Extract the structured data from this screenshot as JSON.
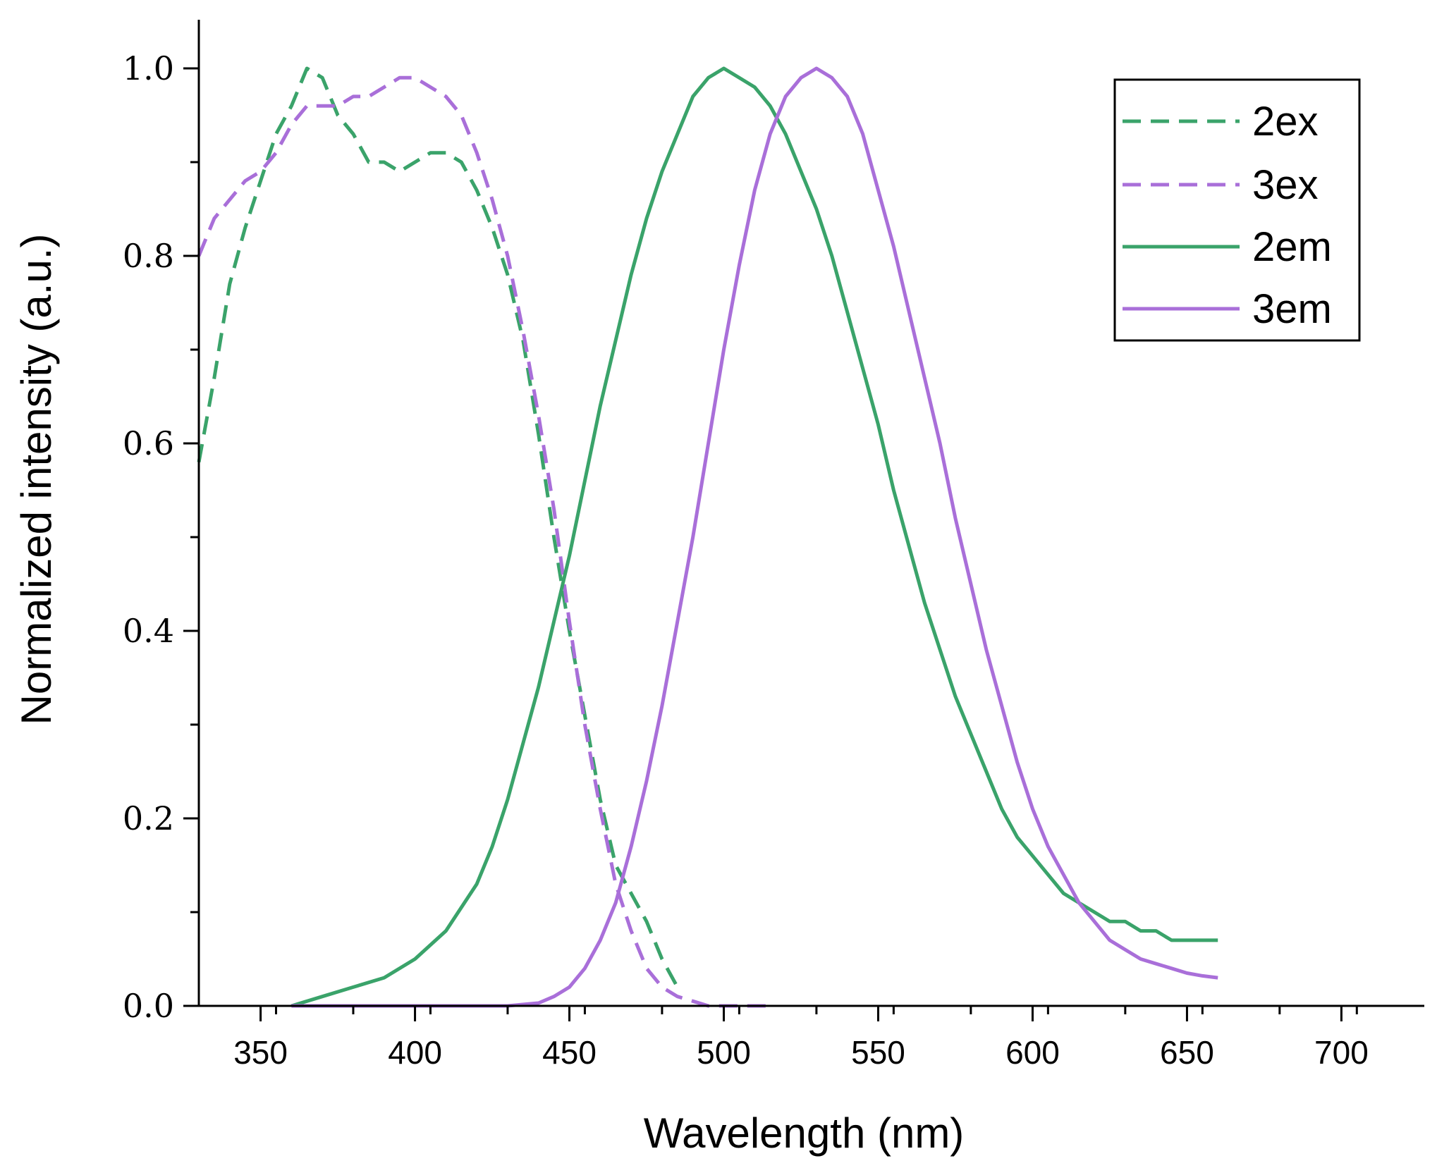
{
  "chart_data": {
    "type": "line",
    "title": "",
    "xlabel": "Wavelength (nm)",
    "ylabel": "Normalized intensity (a.u.)",
    "xlim": [
      330,
      720
    ],
    "ylim": [
      0,
      1.05
    ],
    "x_major_ticks": [
      350,
      400,
      450,
      500,
      550,
      600,
      650,
      700
    ],
    "x_tick_labels": [
      "350",
      "400",
      "450",
      "500",
      "550",
      "600",
      "650",
      "700"
    ],
    "y_major_ticks": [
      0.0,
      0.2,
      0.4,
      0.6,
      0.8,
      1.0
    ],
    "y_tick_labels": [
      "0.0",
      "0.2",
      "0.4",
      "0.6",
      "0.8",
      "1.0"
    ],
    "grid": false,
    "legend_position": "top-right",
    "series": [
      {
        "name": "2ex",
        "label": "2ex",
        "color": "#3aa36a",
        "dash": "dashed",
        "x": [
          330,
          335,
          340,
          345,
          350,
          355,
          360,
          365,
          370,
          375,
          380,
          385,
          390,
          395,
          400,
          405,
          410,
          415,
          420,
          425,
          430,
          435,
          440,
          445,
          450,
          455,
          460,
          465,
          470,
          475,
          480,
          485
        ],
        "y": [
          0.58,
          0.67,
          0.77,
          0.83,
          0.88,
          0.93,
          0.96,
          1.0,
          0.99,
          0.95,
          0.93,
          0.9,
          0.9,
          0.89,
          0.9,
          0.91,
          0.91,
          0.9,
          0.87,
          0.83,
          0.78,
          0.71,
          0.61,
          0.5,
          0.4,
          0.31,
          0.22,
          0.15,
          0.12,
          0.09,
          0.05,
          0.02
        ]
      },
      {
        "name": "3ex",
        "label": "3ex",
        "color": "#a96fd9",
        "dash": "dashed",
        "x": [
          330,
          335,
          340,
          345,
          350,
          355,
          360,
          365,
          370,
          375,
          380,
          385,
          390,
          395,
          400,
          405,
          410,
          415,
          420,
          425,
          430,
          435,
          440,
          445,
          450,
          455,
          460,
          465,
          470,
          475,
          480,
          485,
          490,
          495,
          500,
          505,
          510,
          515
        ],
        "y": [
          0.8,
          0.84,
          0.86,
          0.88,
          0.89,
          0.91,
          0.94,
          0.96,
          0.96,
          0.96,
          0.97,
          0.97,
          0.98,
          0.99,
          0.99,
          0.98,
          0.97,
          0.95,
          0.91,
          0.86,
          0.8,
          0.72,
          0.63,
          0.53,
          0.41,
          0.3,
          0.21,
          0.13,
          0.08,
          0.04,
          0.02,
          0.01,
          0.005,
          0.0,
          0.0,
          0.0,
          0.0,
          0.0
        ]
      },
      {
        "name": "2em",
        "label": "2em",
        "color": "#3aa36a",
        "dash": "solid",
        "x": [
          360,
          370,
          380,
          390,
          400,
          410,
          420,
          425,
          430,
          435,
          440,
          445,
          450,
          455,
          460,
          465,
          470,
          475,
          480,
          485,
          490,
          495,
          500,
          505,
          510,
          515,
          520,
          525,
          530,
          535,
          540,
          545,
          550,
          555,
          560,
          565,
          570,
          575,
          580,
          585,
          590,
          595,
          600,
          605,
          610,
          615,
          620,
          625,
          630,
          635,
          640,
          645,
          650,
          655,
          660
        ],
        "y": [
          0.0,
          0.01,
          0.02,
          0.03,
          0.05,
          0.08,
          0.13,
          0.17,
          0.22,
          0.28,
          0.34,
          0.41,
          0.48,
          0.56,
          0.64,
          0.71,
          0.78,
          0.84,
          0.89,
          0.93,
          0.97,
          0.99,
          1.0,
          0.99,
          0.98,
          0.96,
          0.93,
          0.89,
          0.85,
          0.8,
          0.74,
          0.68,
          0.62,
          0.55,
          0.49,
          0.43,
          0.38,
          0.33,
          0.29,
          0.25,
          0.21,
          0.18,
          0.16,
          0.14,
          0.12,
          0.11,
          0.1,
          0.09,
          0.09,
          0.08,
          0.08,
          0.07,
          0.07,
          0.07,
          0.07
        ]
      },
      {
        "name": "3em",
        "label": "3em",
        "color": "#a96fd9",
        "dash": "solid",
        "x": [
          360,
          380,
          400,
          420,
          430,
          440,
          445,
          450,
          455,
          460,
          465,
          470,
          475,
          480,
          485,
          490,
          495,
          500,
          505,
          510,
          515,
          520,
          525,
          530,
          535,
          540,
          545,
          550,
          555,
          560,
          565,
          570,
          575,
          580,
          585,
          590,
          595,
          600,
          605,
          610,
          615,
          620,
          625,
          630,
          635,
          640,
          645,
          650,
          655,
          660
        ],
        "y": [
          0.0,
          0.0,
          0.0,
          0.0,
          0.0,
          0.003,
          0.01,
          0.02,
          0.04,
          0.07,
          0.11,
          0.17,
          0.24,
          0.32,
          0.41,
          0.5,
          0.6,
          0.7,
          0.79,
          0.87,
          0.93,
          0.97,
          0.99,
          1.0,
          0.99,
          0.97,
          0.93,
          0.87,
          0.81,
          0.74,
          0.67,
          0.6,
          0.52,
          0.45,
          0.38,
          0.32,
          0.26,
          0.21,
          0.17,
          0.14,
          0.11,
          0.09,
          0.07,
          0.06,
          0.05,
          0.045,
          0.04,
          0.035,
          0.032,
          0.03
        ]
      }
    ]
  }
}
